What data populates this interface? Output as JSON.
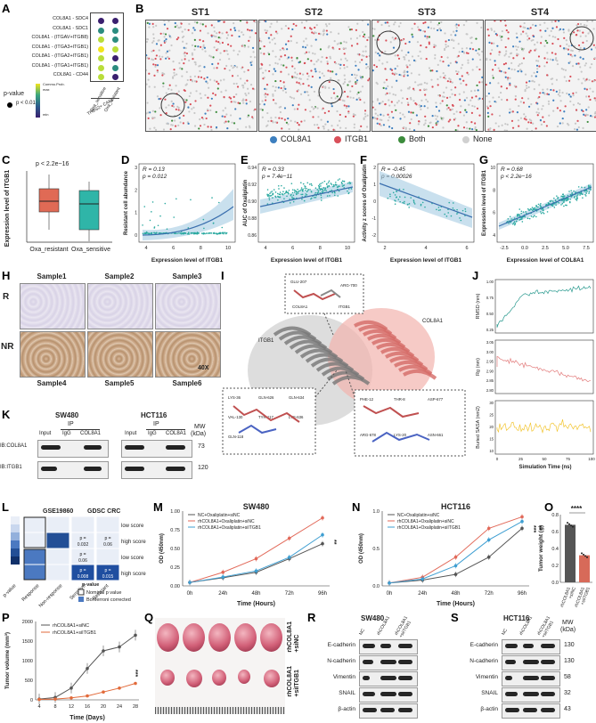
{
  "panels": {
    "A": "A",
    "B": "B",
    "C": "C",
    "D": "D",
    "E": "E",
    "F": "F",
    "G": "G",
    "H": "H",
    "I": "I",
    "J": "J",
    "K": "K",
    "L": "L",
    "M": "M",
    "N": "N",
    "O": "O",
    "P": "P",
    "Q": "Q",
    "R": "R",
    "S": "S"
  },
  "panelA": {
    "rows": [
      "COL8A1 - SDC4",
      "COL8A1 - SDC1",
      "COL8A1 - (ITGAV+ITGB8)",
      "COL8A1 - (ITGA3+ITGB1)",
      "COL8A1 - (ITGA2+ITGB1)",
      "COL8A1 - (ITGA1+ITGB1)",
      "COL8A1 - CD44"
    ],
    "cols": [
      "Oxa_sensitive",
      "Oxa_resistant"
    ],
    "group": "THBS2+ CAFs",
    "legend_pvalue": "p-value",
    "legend_p": "p < 0.01",
    "legend_commprob": "Commu.Prob.",
    "legend_max": "max",
    "legend_min": "min",
    "colors": [
      "#3a1f6e",
      "#3a1f6e",
      "#2c8c7f",
      "#2c8c7f",
      "#b9dd3a",
      "#2c8c7f",
      "#f2e51d",
      "#b9dd3a",
      "#b9dd3a",
      "#3a1f6e",
      "#b9dd3a",
      "#2c8c7f",
      "#b9dd3a",
      "#3a1f6e"
    ]
  },
  "panelB": {
    "titles": [
      "ST1",
      "ST2",
      "ST3",
      "ST4"
    ],
    "legend": [
      {
        "label": "COL8A1",
        "color": "#3d7fbf"
      },
      {
        "label": "ITGB1",
        "color": "#d9505a"
      },
      {
        "label": "Both",
        "color": "#3c8c3c"
      },
      {
        "label": "None",
        "color": "#d0d0d0"
      }
    ]
  },
  "panelC": {
    "pval": "p < 2.2e−16",
    "ylabel": "Expression level of ITGB1",
    "groups": [
      "Oxa_resistant",
      "Oxa_sensitive"
    ],
    "colors": [
      "#e06a55",
      "#2fb5a8"
    ]
  },
  "panelD": {
    "r": "R = 0.13",
    "p": "p = 0.012",
    "xlabel": "Expression level of ITGB1",
    "ylabel": "Resistant cell abundance",
    "xticks": [
      "4",
      "6",
      "8",
      "10"
    ],
    "yticks": [
      "0",
      "1",
      "2",
      "3"
    ]
  },
  "panelE": {
    "r": "R = 0.33",
    "p": "p = 7.4e−11",
    "xlabel": "Expression level of ITGB1",
    "ylabel": "AUC of Oxaliplatin",
    "xticks": [
      "4",
      "6",
      "8",
      "10"
    ],
    "yticks": [
      "0.86",
      "0.88",
      "0.90",
      "0.92",
      "0.94"
    ]
  },
  "panelF": {
    "r": "R = -0.45",
    "p": "p = 0.00026",
    "xlabel": "Expression level of ITGB1",
    "ylabel": "Activity z scores of Oxaliplatin",
    "xticks": [
      "2",
      "4",
      "6"
    ],
    "yticks": [
      "-2",
      "-1",
      "0",
      "1",
      "2"
    ]
  },
  "panelG": {
    "r": "R = 0.68",
    "p": "p < 2.2e−16",
    "xlabel": "Expression level of COL8A1",
    "ylabel": "Expression level of ITGB1",
    "xticks": [
      "-2.5",
      "0.0",
      "2.5",
      "5.0",
      "7.5"
    ],
    "yticks": [
      "4",
      "6",
      "8",
      "10"
    ]
  },
  "panelH": {
    "row_r": "R",
    "row_nr": "NR",
    "samples": [
      "Sample1",
      "Sample2",
      "Sample3",
      "Sample4",
      "Sample5",
      "Sample6"
    ],
    "mag": "40X"
  },
  "panelI": {
    "labels": {
      "itgb1": "ITGB1",
      "col8a1": "COL8A1",
      "top_res1": "GLU-207",
      "top_res2": "COL8A1",
      "top_res3": "ITGB1",
      "top_res4": "ARG-700",
      "bl_res": [
        "LYS-36",
        "GLN-626",
        "GLN-634",
        "VAL-130",
        "TYR-117",
        "LYS-636",
        "GLN-118"
      ],
      "br_res": [
        "PHE-12",
        "THR-8",
        "ASP-677",
        "ARG-678",
        "LYS-20",
        "ASN-661"
      ]
    }
  },
  "panelJ": {
    "ylabels": [
      "RMSD (nm)",
      "Rg (nm)",
      "Buried SASA (nm2)"
    ],
    "xlabel": "Simulation Time (ns)",
    "xticks": [
      "0",
      "25",
      "50",
      "75",
      "100"
    ],
    "rmsd_ticks": [
      "0.25",
      "0.50",
      "0.75",
      "1.00"
    ],
    "rg_ticks": [
      "2.80",
      "2.85",
      "2.90",
      "2.95",
      "3.00",
      "3.05"
    ],
    "sasa_ticks": [
      "10",
      "15",
      "20",
      "25",
      "30"
    ]
  },
  "panelK": {
    "cell1": "SW480",
    "cell2": "HCT116",
    "ip": "IP",
    "lanes": [
      "Input",
      "IgG",
      "COL8A1"
    ],
    "blots": [
      "IB:COL8A1",
      "IB:ITGB1"
    ],
    "mw_header": "MW",
    "mw_unit": "(kDa)",
    "mw": [
      "73",
      "120"
    ]
  },
  "panelL": {
    "titles": [
      "GSE19860",
      "GDSC CRC"
    ],
    "row_labels": [
      "low score",
      "high score",
      "low score",
      "high score"
    ],
    "cells": [
      "p =\n0.032",
      "p =\n0.06",
      "p =\n0.06",
      "p =\n0.008",
      "p =\n0.015"
    ],
    "xlabels": [
      "p-value",
      "Response",
      "Non-response",
      "Sensitive",
      "Resistant"
    ],
    "legend_title": "p-value",
    "legend_items": [
      "Nominal p value",
      "Bonferroni corrected"
    ]
  },
  "panelM": {
    "title": "SW480",
    "ylabel": "OD (450nm)",
    "xlabel": "Time (Hours)",
    "xticks": [
      "0h",
      "24h",
      "48h",
      "72h",
      "96h"
    ],
    "yticks": [
      "0.00",
      "0.25",
      "0.50",
      "0.75",
      "1.00"
    ],
    "sig": "**",
    "legend": [
      "NC+Oxaliplatin+siNC",
      "rhCOL8A1+Oxaliplatin+siNC",
      "rhCOL8A1+Oxaliplatin+siITGB1"
    ]
  },
  "panelN": {
    "title": "HCT116",
    "ylabel": "OD (450nm)",
    "xlabel": "Time (Hours)",
    "xticks": [
      "0h",
      "24h",
      "48h",
      "72h",
      "96h"
    ],
    "yticks": [
      "0.0",
      "0.5",
      "1.0"
    ],
    "sig1": "***",
    "sig2": "**",
    "legend": [
      "NC+Oxaliplatin+siNC",
      "rhCOL8A1+Oxaliplatin+siNC",
      "rhCOL8A1+Oxaliplatin+siITGB1"
    ]
  },
  "panelO": {
    "sig": "****",
    "ylabel": "Tumor weight (g)",
    "yticks": [
      "0.0",
      "0.2",
      "0.4",
      "0.6",
      "0.8"
    ],
    "groups": [
      "rhCOL8A1\n+siNC",
      "rhCOL8A1\n+siITGB1"
    ]
  },
  "panelP": {
    "ylabel": "Tumor volume (mm³)",
    "xlabel": "Time (Days)",
    "xticks": [
      "4",
      "8",
      "12",
      "16",
      "20",
      "24",
      "28"
    ],
    "yticks": [
      "0",
      "500",
      "1000",
      "1500",
      "2000"
    ],
    "sig": "***",
    "legend": [
      "rhCOL8A1+siNC",
      "rhCOL8A1+siITGB1"
    ]
  },
  "panelQ": {
    "rows": [
      "rhCOL8A1\n+siNC",
      "rhCOL8A1\n+siITGB1"
    ]
  },
  "panelR": {
    "title": "SW480",
    "lanes": [
      "NC",
      "rhCOL8A1",
      "rhCOL8A1\n+siITGB1"
    ],
    "proteins": [
      "E-cadherin",
      "N-cadherin",
      "Vimentin",
      "SNAIL",
      "β-actin"
    ]
  },
  "panelS": {
    "title": "HCT116",
    "lanes": [
      "NC",
      "rhCOL8A1",
      "rhCOL8A1\n+siITGB1"
    ],
    "proteins": [
      "E-cadherin",
      "N-cadherin",
      "Vimentin",
      "SNAIL",
      "β-actin"
    ],
    "mw_header": "MW",
    "mw_unit": "(kDa)",
    "mw": [
      "130",
      "130",
      "58",
      "32",
      "43"
    ]
  },
  "chart_data": [
    {
      "type": "line",
      "name": "M",
      "title": "SW480",
      "xlabel": "Time (Hours)",
      "ylabel": "OD (450nm)",
      "categories": [
        "0h",
        "24h",
        "48h",
        "72h",
        "96h"
      ],
      "ylim": [
        0,
        1.1
      ],
      "series": [
        {
          "name": "NC+Oxaliplatin+siNC",
          "values": [
            0.05,
            0.12,
            0.2,
            0.4,
            0.62
          ]
        },
        {
          "name": "rhCOL8A1+Oxaliplatin+siNC",
          "values": [
            0.05,
            0.2,
            0.4,
            0.7,
            1.0
          ]
        },
        {
          "name": "rhCOL8A1+Oxaliplatin+siITGB1",
          "values": [
            0.05,
            0.13,
            0.22,
            0.42,
            0.75
          ]
        }
      ]
    },
    {
      "type": "line",
      "name": "N",
      "title": "HCT116",
      "xlabel": "Time (Hours)",
      "ylabel": "OD (450nm)",
      "categories": [
        "0h",
        "24h",
        "48h",
        "72h",
        "96h"
      ],
      "ylim": [
        0,
        1.3
      ],
      "series": [
        {
          "name": "NC+Oxaliplatin+siNC",
          "values": [
            0.05,
            0.1,
            0.2,
            0.5,
            1.0
          ]
        },
        {
          "name": "rhCOL8A1+Oxaliplatin+siNC",
          "values": [
            0.05,
            0.15,
            0.5,
            1.0,
            1.2
          ]
        },
        {
          "name": "rhCOL8A1+Oxaliplatin+siITGB1",
          "values": [
            0.05,
            0.12,
            0.35,
            0.8,
            1.12
          ]
        }
      ]
    },
    {
      "type": "bar",
      "name": "O",
      "ylabel": "Tumor weight (g)",
      "categories": [
        "rhCOL8A1+siNC",
        "rhCOL8A1+siITGB1"
      ],
      "values": [
        0.68,
        0.32
      ],
      "ylim": [
        0,
        0.8
      ]
    },
    {
      "type": "line",
      "name": "P",
      "xlabel": "Time (Days)",
      "ylabel": "Tumor volume (mm³)",
      "x": [
        4,
        8,
        12,
        16,
        20,
        24,
        28
      ],
      "ylim": [
        0,
        2000
      ],
      "series": [
        {
          "name": "rhCOL8A1+siNC",
          "values": [
            20,
            60,
            300,
            800,
            1250,
            1350,
            1650
          ]
        },
        {
          "name": "rhCOL8A1+siITGB1",
          "values": [
            10,
            20,
            50,
            100,
            200,
            300,
            420
          ]
        }
      ]
    }
  ]
}
